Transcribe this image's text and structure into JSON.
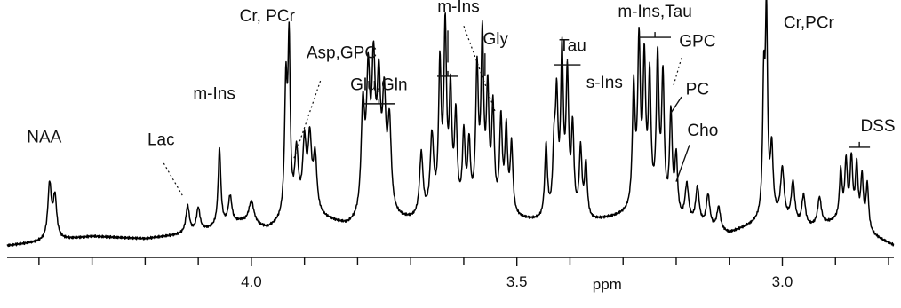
{
  "chart_data": {
    "type": "line",
    "title": "",
    "xlabel": "ppm",
    "ylabel": "",
    "xlim": [
      4.46,
      2.79
    ],
    "x_reversed": true,
    "grid": false,
    "legend": "none",
    "xticks": [
      {
        "value": 4.0,
        "label": "4.0"
      },
      {
        "value": 3.5,
        "label": "3.5"
      },
      {
        "value": 3.0,
        "label": "3.0"
      }
    ],
    "minor_tick_step": 0.1,
    "baseline": [
      {
        "x": 4.46,
        "y": 0.02
      },
      {
        "x": 4.3,
        "y": 0.06
      },
      {
        "x": 4.2,
        "y": 0.05
      },
      {
        "x": 4.12,
        "y": 0.07
      },
      {
        "x": 4.02,
        "y": 0.12
      },
      {
        "x": 3.97,
        "y": 0.09
      },
      {
        "x": 3.9,
        "y": 0.16
      },
      {
        "x": 3.82,
        "y": 0.1
      },
      {
        "x": 3.75,
        "y": 0.13
      },
      {
        "x": 3.68,
        "y": 0.12
      },
      {
        "x": 3.6,
        "y": 0.15
      },
      {
        "x": 3.5,
        "y": 0.13
      },
      {
        "x": 3.42,
        "y": 0.11
      },
      {
        "x": 3.36,
        "y": 0.12
      },
      {
        "x": 3.27,
        "y": 0.16
      },
      {
        "x": 3.2,
        "y": 0.12
      },
      {
        "x": 3.1,
        "y": 0.07
      },
      {
        "x": 3.02,
        "y": 0.14
      },
      {
        "x": 2.96,
        "y": 0.09
      },
      {
        "x": 2.9,
        "y": 0.12
      },
      {
        "x": 2.84,
        "y": 0.07
      },
      {
        "x": 2.79,
        "y": 0.02
      }
    ],
    "peaks": [
      {
        "x": 4.38,
        "h": 0.24,
        "w": 0.004
      },
      {
        "x": 4.37,
        "h": 0.18,
        "w": 0.004
      },
      {
        "x": 4.12,
        "h": 0.12,
        "w": 0.004
      },
      {
        "x": 4.1,
        "h": 0.1,
        "w": 0.004
      },
      {
        "x": 4.06,
        "h": 0.34,
        "w": 0.003
      },
      {
        "x": 4.04,
        "h": 0.12,
        "w": 0.004
      },
      {
        "x": 4.0,
        "h": 0.1,
        "w": 0.006
      },
      {
        "x": 3.935,
        "h": 0.56,
        "w": 0.003
      },
      {
        "x": 3.929,
        "h": 0.72,
        "w": 0.0025
      },
      {
        "x": 3.915,
        "h": 0.26,
        "w": 0.004
      },
      {
        "x": 3.9,
        "h": 0.28,
        "w": 0.004
      },
      {
        "x": 3.89,
        "h": 0.3,
        "w": 0.004
      },
      {
        "x": 3.88,
        "h": 0.24,
        "w": 0.004
      },
      {
        "x": 3.79,
        "h": 0.46,
        "w": 0.004
      },
      {
        "x": 3.78,
        "h": 0.56,
        "w": 0.004
      },
      {
        "x": 3.77,
        "h": 0.6,
        "w": 0.004
      },
      {
        "x": 3.76,
        "h": 0.52,
        "w": 0.004
      },
      {
        "x": 3.75,
        "h": 0.46,
        "w": 0.004
      },
      {
        "x": 3.74,
        "h": 0.38,
        "w": 0.004
      },
      {
        "x": 3.68,
        "h": 0.28,
        "w": 0.004
      },
      {
        "x": 3.66,
        "h": 0.34,
        "w": 0.004
      },
      {
        "x": 3.645,
        "h": 0.62,
        "w": 0.003
      },
      {
        "x": 3.635,
        "h": 0.78,
        "w": 0.003
      },
      {
        "x": 3.625,
        "h": 0.5,
        "w": 0.003
      },
      {
        "x": 3.615,
        "h": 0.4,
        "w": 0.003
      },
      {
        "x": 3.6,
        "h": 0.32,
        "w": 0.003
      },
      {
        "x": 3.59,
        "h": 0.28,
        "w": 0.003
      },
      {
        "x": 3.575,
        "h": 0.6,
        "w": 0.003
      },
      {
        "x": 3.565,
        "h": 0.74,
        "w": 0.003
      },
      {
        "x": 3.555,
        "h": 0.5,
        "w": 0.003
      },
      {
        "x": 3.545,
        "h": 0.44,
        "w": 0.003
      },
      {
        "x": 3.53,
        "h": 0.4,
        "w": 0.003
      },
      {
        "x": 3.52,
        "h": 0.36,
        "w": 0.003
      },
      {
        "x": 3.51,
        "h": 0.3,
        "w": 0.003
      },
      {
        "x": 3.445,
        "h": 0.32,
        "w": 0.003
      },
      {
        "x": 3.43,
        "h": 0.26,
        "w": 0.003
      },
      {
        "x": 3.425,
        "h": 0.48,
        "w": 0.003
      },
      {
        "x": 3.415,
        "h": 0.7,
        "w": 0.003
      },
      {
        "x": 3.405,
        "h": 0.6,
        "w": 0.003
      },
      {
        "x": 3.395,
        "h": 0.38,
        "w": 0.003
      },
      {
        "x": 3.38,
        "h": 0.3,
        "w": 0.003
      },
      {
        "x": 3.37,
        "h": 0.24,
        "w": 0.003
      },
      {
        "x": 3.28,
        "h": 0.52,
        "w": 0.003
      },
      {
        "x": 3.27,
        "h": 0.7,
        "w": 0.003
      },
      {
        "x": 3.26,
        "h": 0.62,
        "w": 0.003
      },
      {
        "x": 3.25,
        "h": 0.56,
        "w": 0.003
      },
      {
        "x": 3.235,
        "h": 0.66,
        "w": 0.003
      },
      {
        "x": 3.225,
        "h": 0.58,
        "w": 0.003
      },
      {
        "x": 3.21,
        "h": 0.44,
        "w": 0.003
      },
      {
        "x": 3.2,
        "h": 0.26,
        "w": 0.003
      },
      {
        "x": 3.18,
        "h": 0.16,
        "w": 0.004
      },
      {
        "x": 3.16,
        "h": 0.16,
        "w": 0.004
      },
      {
        "x": 3.14,
        "h": 0.14,
        "w": 0.004
      },
      {
        "x": 3.12,
        "h": 0.1,
        "w": 0.004
      },
      {
        "x": 3.035,
        "h": 0.55,
        "w": 0.0025
      },
      {
        "x": 3.03,
        "h": 0.86,
        "w": 0.0025
      },
      {
        "x": 3.02,
        "h": 0.28,
        "w": 0.003
      },
      {
        "x": 3.0,
        "h": 0.22,
        "w": 0.004
      },
      {
        "x": 2.98,
        "h": 0.18,
        "w": 0.004
      },
      {
        "x": 2.96,
        "h": 0.14,
        "w": 0.004
      },
      {
        "x": 2.93,
        "h": 0.12,
        "w": 0.004
      },
      {
        "x": 2.89,
        "h": 0.22,
        "w": 0.003
      },
      {
        "x": 2.88,
        "h": 0.26,
        "w": 0.003
      },
      {
        "x": 2.87,
        "h": 0.28,
        "w": 0.003
      },
      {
        "x": 2.86,
        "h": 0.26,
        "w": 0.003
      },
      {
        "x": 2.85,
        "h": 0.22,
        "w": 0.003
      },
      {
        "x": 2.84,
        "h": 0.2,
        "w": 0.003
      }
    ],
    "annotations": [
      {
        "text": "NAA",
        "tx": 4.39,
        "ty": 0.47,
        "line": "none"
      },
      {
        "text": "Lac",
        "tx": 4.17,
        "ty": 0.46,
        "line": "dotted",
        "lx1": 4.165,
        "ly1": 0.38,
        "lx2": 4.13,
        "ly2": 0.24
      },
      {
        "text": "m-Ins",
        "tx": 4.07,
        "ty": 0.66,
        "line": "none"
      },
      {
        "text": "Cr, PCr",
        "tx": 3.97,
        "ty": 1.0,
        "line": "none"
      },
      {
        "text": "Asp,GPC",
        "tx": 3.83,
        "ty": 0.84,
        "line": "dotted",
        "lx1": 3.87,
        "ly1": 0.74,
        "lx2": 3.92,
        "ly2": 0.4
      },
      {
        "text": "Glu,Gln",
        "tx": 3.76,
        "ty": 0.7,
        "line": "bracket",
        "bx1": 3.79,
        "bx2": 3.73,
        "by": 0.64
      },
      {
        "text": "m-Ins",
        "tx": 3.61,
        "ty": 1.04,
        "line": "tick",
        "lx1": 3.63,
        "ly1": 0.82,
        "lx2": 3.63,
        "ly2": 0.96
      },
      {
        "text": "",
        "tx": 3.63,
        "ty": 0.8,
        "line": "bracket",
        "bx1": 3.65,
        "bx2": 3.61,
        "by": 0.76
      },
      {
        "text": "Gly",
        "tx": 3.54,
        "ty": 0.9,
        "line": "tick",
        "lx1": 3.56,
        "ly1": 0.76,
        "lx2": 3.56,
        "ly2": 0.86
      },
      {
        "text": "",
        "tx": 3.6,
        "ty": 0.6,
        "line": "dotted",
        "lx1": 3.6,
        "ly1": 0.98,
        "lx2": 3.54,
        "ly2": 0.6
      },
      {
        "text": "Tau",
        "tx": 3.395,
        "ty": 0.87,
        "line": "bracket",
        "bx1": 3.43,
        "bx2": 3.38,
        "by": 0.81
      },
      {
        "text": "s-Ins",
        "tx": 3.335,
        "ty": 0.71,
        "line": "none"
      },
      {
        "text": "m-Ins,Tau",
        "tx": 3.24,
        "ty": 1.02,
        "line": "bracket",
        "bx1": 3.27,
        "bx2": 3.21,
        "by": 0.93
      },
      {
        "text": "GPC",
        "tx": 3.16,
        "ty": 0.89,
        "line": "dotted",
        "lx1": 3.19,
        "ly1": 0.84,
        "lx2": 3.205,
        "ly2": 0.72
      },
      {
        "text": "PC",
        "tx": 3.16,
        "ty": 0.68,
        "line": "solid",
        "lx1": 3.19,
        "ly1": 0.67,
        "lx2": 3.21,
        "ly2": 0.6
      },
      {
        "text": "Cho",
        "tx": 3.15,
        "ty": 0.5,
        "line": "solid",
        "lx1": 3.175,
        "ly1": 0.46,
        "lx2": 3.2,
        "ly2": 0.3
      },
      {
        "text": "Cr,PCr",
        "tx": 2.95,
        "ty": 0.97,
        "line": "none"
      },
      {
        "text": "DSS",
        "tx": 2.82,
        "ty": 0.52,
        "line": "bracket",
        "bx1": 2.875,
        "bx2": 2.835,
        "by": 0.45
      }
    ]
  }
}
